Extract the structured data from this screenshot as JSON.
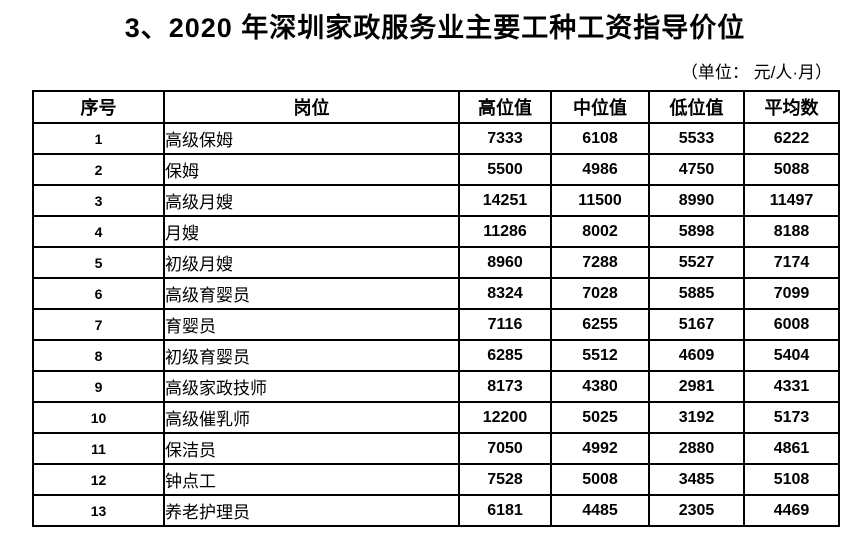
{
  "title": "3、2020 年深圳家政服务业主要工种工资指导价位",
  "unit_note": "（单位： 元/人·月）",
  "table": {
    "headers": [
      "序号",
      "岗位",
      "高位值",
      "中位值",
      "低位值",
      "平均数"
    ],
    "rows": [
      {
        "no": "1",
        "position": "高级保姆",
        "high": "7333",
        "median": "6108",
        "low": "5533",
        "average": "6222"
      },
      {
        "no": "2",
        "position": "保姆",
        "high": "5500",
        "median": "4986",
        "low": "4750",
        "average": "5088"
      },
      {
        "no": "3",
        "position": "高级月嫂",
        "high": "14251",
        "median": "11500",
        "low": "8990",
        "average": "11497"
      },
      {
        "no": "4",
        "position": "月嫂",
        "high": "11286",
        "median": "8002",
        "low": "5898",
        "average": "8188"
      },
      {
        "no": "5",
        "position": "初级月嫂",
        "high": "8960",
        "median": "7288",
        "low": "5527",
        "average": "7174"
      },
      {
        "no": "6",
        "position": "高级育婴员",
        "high": "8324",
        "median": "7028",
        "low": "5885",
        "average": "7099"
      },
      {
        "no": "7",
        "position": "育婴员",
        "high": "7116",
        "median": "6255",
        "low": "5167",
        "average": "6008"
      },
      {
        "no": "8",
        "position": "初级育婴员",
        "high": "6285",
        "median": "5512",
        "low": "4609",
        "average": "5404"
      },
      {
        "no": "9",
        "position": "高级家政技师",
        "high": "8173",
        "median": "4380",
        "low": "2981",
        "average": "4331"
      },
      {
        "no": "10",
        "position": "高级催乳师",
        "high": "12200",
        "median": "5025",
        "low": "3192",
        "average": "5173"
      },
      {
        "no": "11",
        "position": "保洁员",
        "high": "7050",
        "median": "4992",
        "low": "2880",
        "average": "4861"
      },
      {
        "no": "12",
        "position": "钟点工",
        "high": "7528",
        "median": "5008",
        "low": "3485",
        "average": "5108"
      },
      {
        "no": "13",
        "position": "养老护理员",
        "high": "6181",
        "median": "4485",
        "low": "2305",
        "average": "4469"
      }
    ]
  }
}
